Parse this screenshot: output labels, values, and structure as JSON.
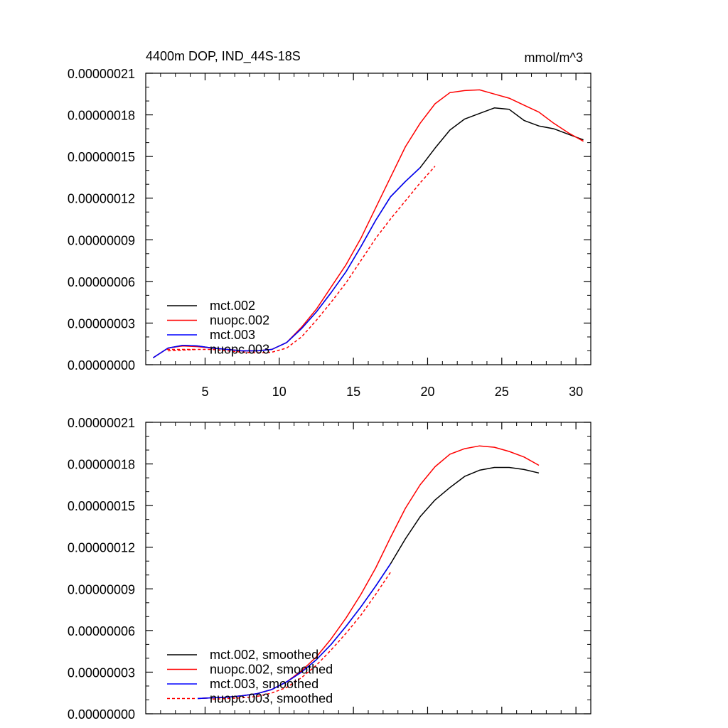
{
  "chart_data": [
    {
      "type": "line",
      "title": "4400m DOP, IND_44S-18S",
      "units_label": "mmol/m^3",
      "xlim": [
        1,
        31
      ],
      "ylim": [
        0,
        2.1e-07
      ],
      "x_ticks": [
        5,
        10,
        15,
        20,
        25,
        30
      ],
      "x_tick_labels": [
        "5",
        "10",
        "15",
        "20",
        "25",
        "30"
      ],
      "y_ticks": [
        0,
        3e-08,
        6e-08,
        9e-08,
        1.2e-07,
        1.5e-07,
        1.8e-07,
        2.1e-07
      ],
      "y_tick_labels": [
        "0.00000000",
        "0.00000003",
        "0.00000006",
        "0.00000009",
        "0.00000012",
        "0.00000015",
        "0.00000018",
        "0.00000021"
      ],
      "legend_position": "bottom-left",
      "series": [
        {
          "name": "mct.002",
          "color": "#000000",
          "dash": "solid",
          "x": [
            1.5,
            2.5,
            3.5,
            4.5,
            5.5,
            6.5,
            7.5,
            8.5,
            9.5,
            10.5,
            11.5,
            12.5,
            13.5,
            14.5,
            15.5,
            16.5,
            17.5,
            18.5,
            19.5,
            20.5,
            21.5,
            22.5,
            23.5,
            24.5,
            25.5,
            26.5,
            27.5,
            28.5,
            29.5,
            30.5
          ],
          "y": [
            5e-09,
            1.2e-08,
            1.4e-08,
            1.35e-08,
            1.2e-08,
            1.1e-08,
            1e-08,
            1e-08,
            1.1e-08,
            1.6e-08,
            2.6e-08,
            3.8e-08,
            5.2e-08,
            6.7e-08,
            8.5e-08,
            1.04e-07,
            1.21e-07,
            1.32e-07,
            1.42e-07,
            1.56e-07,
            1.69e-07,
            1.77e-07,
            1.81e-07,
            1.85e-07,
            1.84e-07,
            1.76e-07,
            1.72e-07,
            1.7e-07,
            1.66e-07,
            1.62e-07
          ]
        },
        {
          "name": "nuopc.002",
          "color": "#ff0000",
          "dash": "solid",
          "x": [
            1.5,
            2.5,
            3.5,
            4.5,
            5.5,
            6.5,
            7.5,
            8.5,
            9.5,
            10.5,
            11.5,
            12.5,
            13.5,
            14.5,
            15.5,
            16.5,
            17.5,
            18.5,
            19.5,
            20.5,
            21.5,
            22.5,
            23.5,
            24.5,
            25.5,
            26.5,
            27.5,
            28.5,
            29.5,
            30.5
          ],
          "y": [
            5e-09,
            1.2e-08,
            1.35e-08,
            1.3e-08,
            1.2e-08,
            1.1e-08,
            1e-08,
            1e-08,
            1.1e-08,
            1.6e-08,
            2.7e-08,
            4e-08,
            5.6e-08,
            7.2e-08,
            9.1e-08,
            1.13e-07,
            1.35e-07,
            1.57e-07,
            1.74e-07,
            1.88e-07,
            1.96e-07,
            1.975e-07,
            1.98e-07,
            1.95e-07,
            1.92e-07,
            1.87e-07,
            1.82e-07,
            1.74e-07,
            1.67e-07,
            1.61e-07
          ]
        },
        {
          "name": "mct.003",
          "color": "#0000ff",
          "dash": "solid",
          "x": [
            1.5,
            2.5,
            3.5,
            4.5,
            5.5,
            6.5,
            7.5,
            8.5,
            9.5,
            10.5,
            11.5,
            12.5,
            13.5,
            14.5,
            15.5,
            16.5,
            17.5,
            18.5,
            19.5
          ],
          "y": [
            5e-09,
            1.2e-08,
            1.4e-08,
            1.35e-08,
            1.2e-08,
            1.1e-08,
            1e-08,
            1e-08,
            1.1e-08,
            1.6e-08,
            2.6e-08,
            3.8e-08,
            5.2e-08,
            6.7e-08,
            8.5e-08,
            1.04e-07,
            1.21e-07,
            1.32e-07,
            1.42e-07
          ]
        },
        {
          "name": "nuopc.003",
          "color": "#ff0000",
          "dash": "dashed",
          "x": [
            2.5,
            3.5,
            4.5,
            5.5,
            6.5,
            7.5,
            8.5,
            9.5,
            10.5,
            11.5,
            12.5,
            13.5,
            14.5,
            15.5,
            16.5,
            17.5,
            18.5,
            19.5,
            20.5
          ],
          "y": [
            1e-08,
            1.05e-08,
            1.1e-08,
            1.1e-08,
            1e-08,
            9e-09,
            8.5e-09,
            9e-09,
            1.2e-08,
            2e-08,
            3.2e-08,
            4.5e-08,
            5.9e-08,
            7.5e-08,
            9.1e-08,
            1.05e-07,
            1.18e-07,
            1.31e-07,
            1.43e-07
          ]
        }
      ]
    },
    {
      "type": "line",
      "xlim": [
        1,
        31
      ],
      "ylim": [
        0,
        2.1e-07
      ],
      "x_ticks": [
        5,
        10,
        15,
        20,
        25,
        30
      ],
      "y_ticks": [
        0,
        3e-08,
        6e-08,
        9e-08,
        1.2e-07,
        1.5e-07,
        1.8e-07,
        2.1e-07
      ],
      "y_tick_labels": [
        "0.00000000",
        "0.00000003",
        "0.00000006",
        "0.00000009",
        "0.00000012",
        "0.00000015",
        "0.00000018",
        "0.00000021"
      ],
      "legend_position": "bottom-left",
      "series": [
        {
          "name": "mct.002, smoothed",
          "color": "#000000",
          "dash": "solid",
          "x": [
            4.5,
            5.5,
            6.5,
            7.5,
            8.5,
            9.5,
            10.5,
            11.5,
            12.5,
            13.5,
            14.5,
            15.5,
            16.5,
            17.5,
            18.5,
            19.5,
            20.5,
            21.5,
            22.5,
            23.5,
            24.5,
            25.5,
            26.5,
            27.5
          ],
          "y": [
            1.1e-08,
            1.15e-08,
            1.2e-08,
            1.3e-08,
            1.45e-08,
            1.75e-08,
            2.3e-08,
            3e-08,
            3.9e-08,
            5e-08,
            6.3e-08,
            7.7e-08,
            9.2e-08,
            1.08e-07,
            1.26e-07,
            1.42e-07,
            1.54e-07,
            1.63e-07,
            1.71e-07,
            1.755e-07,
            1.775e-07,
            1.775e-07,
            1.76e-07,
            1.735e-07
          ]
        },
        {
          "name": "nuopc.002, smoothed",
          "color": "#ff0000",
          "dash": "solid",
          "x": [
            4.5,
            5.5,
            6.5,
            7.5,
            8.5,
            9.5,
            10.5,
            11.5,
            12.5,
            13.5,
            14.5,
            15.5,
            16.5,
            17.5,
            18.5,
            19.5,
            20.5,
            21.5,
            22.5,
            23.5,
            24.5,
            25.5,
            26.5,
            27.5
          ],
          "y": [
            1.1e-08,
            1.15e-08,
            1.2e-08,
            1.3e-08,
            1.45e-08,
            1.75e-08,
            2.3e-08,
            3.1e-08,
            4.1e-08,
            5.4e-08,
            6.9e-08,
            8.6e-08,
            1.05e-07,
            1.27e-07,
            1.48e-07,
            1.65e-07,
            1.78e-07,
            1.87e-07,
            1.91e-07,
            1.93e-07,
            1.92e-07,
            1.89e-07,
            1.85e-07,
            1.79e-07
          ]
        },
        {
          "name": "mct.003, smoothed",
          "color": "#0000ff",
          "dash": "solid",
          "x": [
            4.5,
            5.5,
            6.5,
            7.5,
            8.5,
            9.5,
            10.5,
            11.5,
            12.5,
            13.5,
            14.5,
            15.5,
            16.5,
            17.5
          ],
          "y": [
            1.1e-08,
            1.15e-08,
            1.2e-08,
            1.3e-08,
            1.45e-08,
            1.75e-08,
            2.3e-08,
            3e-08,
            3.9e-08,
            5e-08,
            6.3e-08,
            7.7e-08,
            9.2e-08,
            1.08e-07
          ]
        },
        {
          "name": "nuopc.003, smoothed",
          "color": "#ff0000",
          "dash": "dashed",
          "x": [
            5.5,
            6.5,
            7.5,
            8.5,
            9.5,
            10.5,
            11.5,
            12.5,
            13.5,
            14.5,
            15.5,
            16.5,
            17.5
          ],
          "y": [
            1.05e-08,
            1.1e-08,
            1.15e-08,
            1.25e-08,
            1.5e-08,
            1.9e-08,
            2.6e-08,
            3.5e-08,
            4.6e-08,
            5.8e-08,
            7.1e-08,
            8.6e-08,
            1.02e-07
          ]
        }
      ]
    }
  ]
}
